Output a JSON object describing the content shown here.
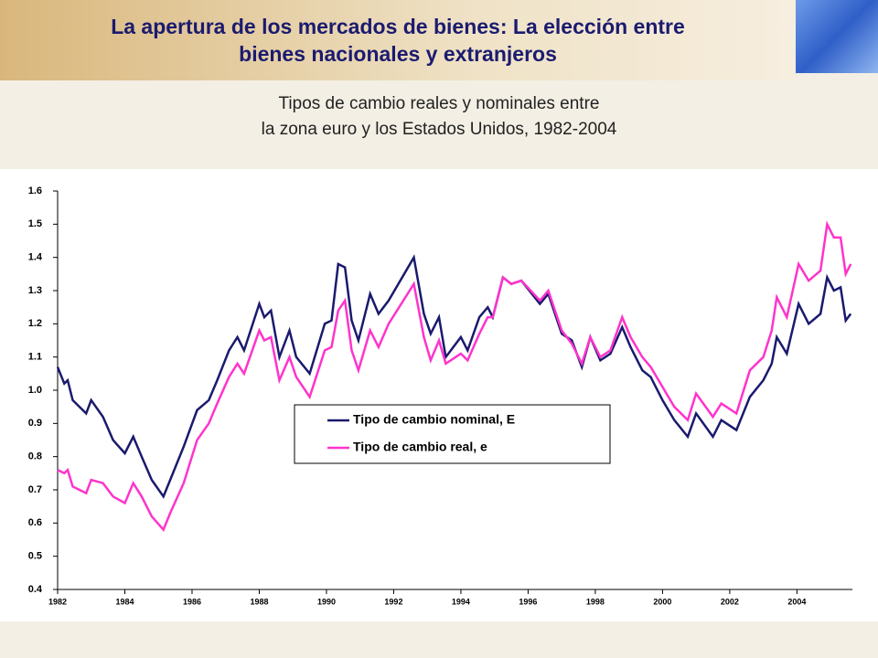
{
  "slide_title": [
    "La apertura de los mercados de bienes: La elección entre",
    "bienes nacionales y extranjeros"
  ],
  "chart_data": {
    "type": "line",
    "title": [
      "Tipos de cambio reales y nominales entre",
      "la zona euro y los Estados Unidos, 1982-2004"
    ],
    "x": [
      1982.0,
      1982.2,
      1982.3,
      1982.45,
      1982.85,
      1983.0,
      1983.35,
      1983.65,
      1984.0,
      1984.25,
      1984.5,
      1984.8,
      1985.15,
      1985.35,
      1985.75,
      1986.15,
      1986.5,
      1986.75,
      1987.1,
      1987.35,
      1987.55,
      1988.0,
      1988.15,
      1988.35,
      1988.6,
      1988.9,
      1989.1,
      1989.5,
      1989.95,
      1990.15,
      1990.35,
      1990.55,
      1990.75,
      1990.95,
      1991.3,
      1991.55,
      1991.85,
      1992.6,
      1992.9,
      1993.1,
      1993.35,
      1993.55,
      1994.0,
      1994.2,
      1994.55,
      1994.8,
      1994.95,
      1995.25,
      1995.5,
      1995.8,
      1996.35,
      1996.6,
      1997.0,
      1997.3,
      1997.6,
      1997.85,
      1998.15,
      1998.45,
      1998.8,
      1999.05,
      1999.4,
      1999.65,
      2000.0,
      2000.35,
      2000.75,
      2001.0,
      2001.5,
      2001.75,
      2002.2,
      2002.6,
      2003.0,
      2003.25,
      2003.4,
      2003.7,
      2004.05,
      2004.35,
      2004.7,
      2004.9,
      2005.1,
      2005.3,
      2005.45,
      2005.6
    ],
    "series": [
      {
        "name": "Tipo de cambio nominal, E",
        "color": "#1a1a6e",
        "values": [
          1.07,
          1.02,
          1.03,
          0.97,
          0.93,
          0.97,
          0.92,
          0.85,
          0.81,
          0.86,
          0.8,
          0.73,
          0.68,
          0.73,
          0.83,
          0.94,
          0.97,
          1.03,
          1.12,
          1.16,
          1.12,
          1.26,
          1.22,
          1.24,
          1.1,
          1.18,
          1.1,
          1.05,
          1.2,
          1.21,
          1.38,
          1.37,
          1.21,
          1.15,
          1.29,
          1.23,
          1.27,
          1.4,
          1.23,
          1.17,
          1.22,
          1.1,
          1.16,
          1.12,
          1.22,
          1.25,
          1.22,
          1.34,
          1.32,
          1.33,
          1.26,
          1.29,
          1.17,
          1.15,
          1.07,
          1.16,
          1.09,
          1.11,
          1.19,
          1.13,
          1.06,
          1.04,
          0.97,
          0.91,
          0.86,
          0.93,
          0.86,
          0.91,
          0.88,
          0.98,
          1.03,
          1.08,
          1.16,
          1.11,
          1.26,
          1.2,
          1.23,
          1.34,
          1.3,
          1.31,
          1.21,
          1.23
        ]
      },
      {
        "name": "Tipo de cambio real, e",
        "color": "#ff33cc",
        "values": [
          0.76,
          0.75,
          0.76,
          0.71,
          0.69,
          0.73,
          0.72,
          0.68,
          0.66,
          0.72,
          0.68,
          0.62,
          0.58,
          0.63,
          0.72,
          0.85,
          0.9,
          0.96,
          1.04,
          1.08,
          1.05,
          1.18,
          1.15,
          1.16,
          1.03,
          1.1,
          1.04,
          0.98,
          1.12,
          1.13,
          1.24,
          1.27,
          1.12,
          1.06,
          1.18,
          1.13,
          1.2,
          1.32,
          1.16,
          1.09,
          1.15,
          1.08,
          1.11,
          1.09,
          1.17,
          1.22,
          1.22,
          1.34,
          1.32,
          1.33,
          1.27,
          1.3,
          1.18,
          1.14,
          1.08,
          1.16,
          1.1,
          1.12,
          1.22,
          1.16,
          1.1,
          1.07,
          1.01,
          0.95,
          0.91,
          0.99,
          0.92,
          0.96,
          0.93,
          1.06,
          1.1,
          1.18,
          1.28,
          1.22,
          1.38,
          1.33,
          1.36,
          1.5,
          1.46,
          1.46,
          1.35,
          1.38
        ]
      }
    ],
    "xlim": [
      1982,
      2005.65
    ],
    "xticks": [
      1982,
      1984,
      1986,
      1988,
      1990,
      1992,
      1994,
      1996,
      1998,
      2000,
      2002,
      2004
    ],
    "ylim": [
      0.4,
      1.6
    ],
    "yticks": [
      0.4,
      0.5,
      0.6,
      0.7,
      0.8,
      0.9,
      {
        "value": 1,
        "label": "1.0"
      },
      1.1,
      1.2,
      1.3,
      1.4,
      1.5,
      1.6
    ],
    "grid": false,
    "legend": "center"
  }
}
